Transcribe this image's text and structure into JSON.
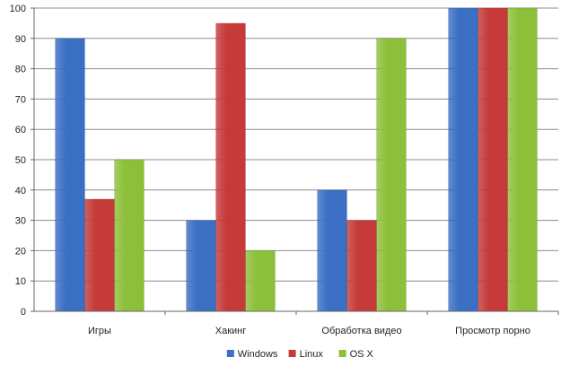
{
  "chart_data": {
    "type": "bar",
    "categories": [
      "Игры",
      "Хакинг",
      "Обработка видео",
      "Просмотр порно"
    ],
    "series": [
      {
        "name": "Windows",
        "values": [
          90,
          30,
          40,
          100
        ],
        "color": "#3a6fc4"
      },
      {
        "name": "Linux",
        "values": [
          37,
          95,
          30,
          100
        ],
        "color": "#c63a3a"
      },
      {
        "name": "OS X",
        "values": [
          50,
          20,
          90,
          100
        ],
        "color": "#8dc03a"
      }
    ],
    "ylim": [
      0,
      100
    ],
    "yticks": [
      0,
      10,
      20,
      30,
      40,
      50,
      60,
      70,
      80,
      90,
      100
    ],
    "grid": true,
    "legend": "bottom",
    "title": "",
    "xlabel": "",
    "ylabel": ""
  }
}
